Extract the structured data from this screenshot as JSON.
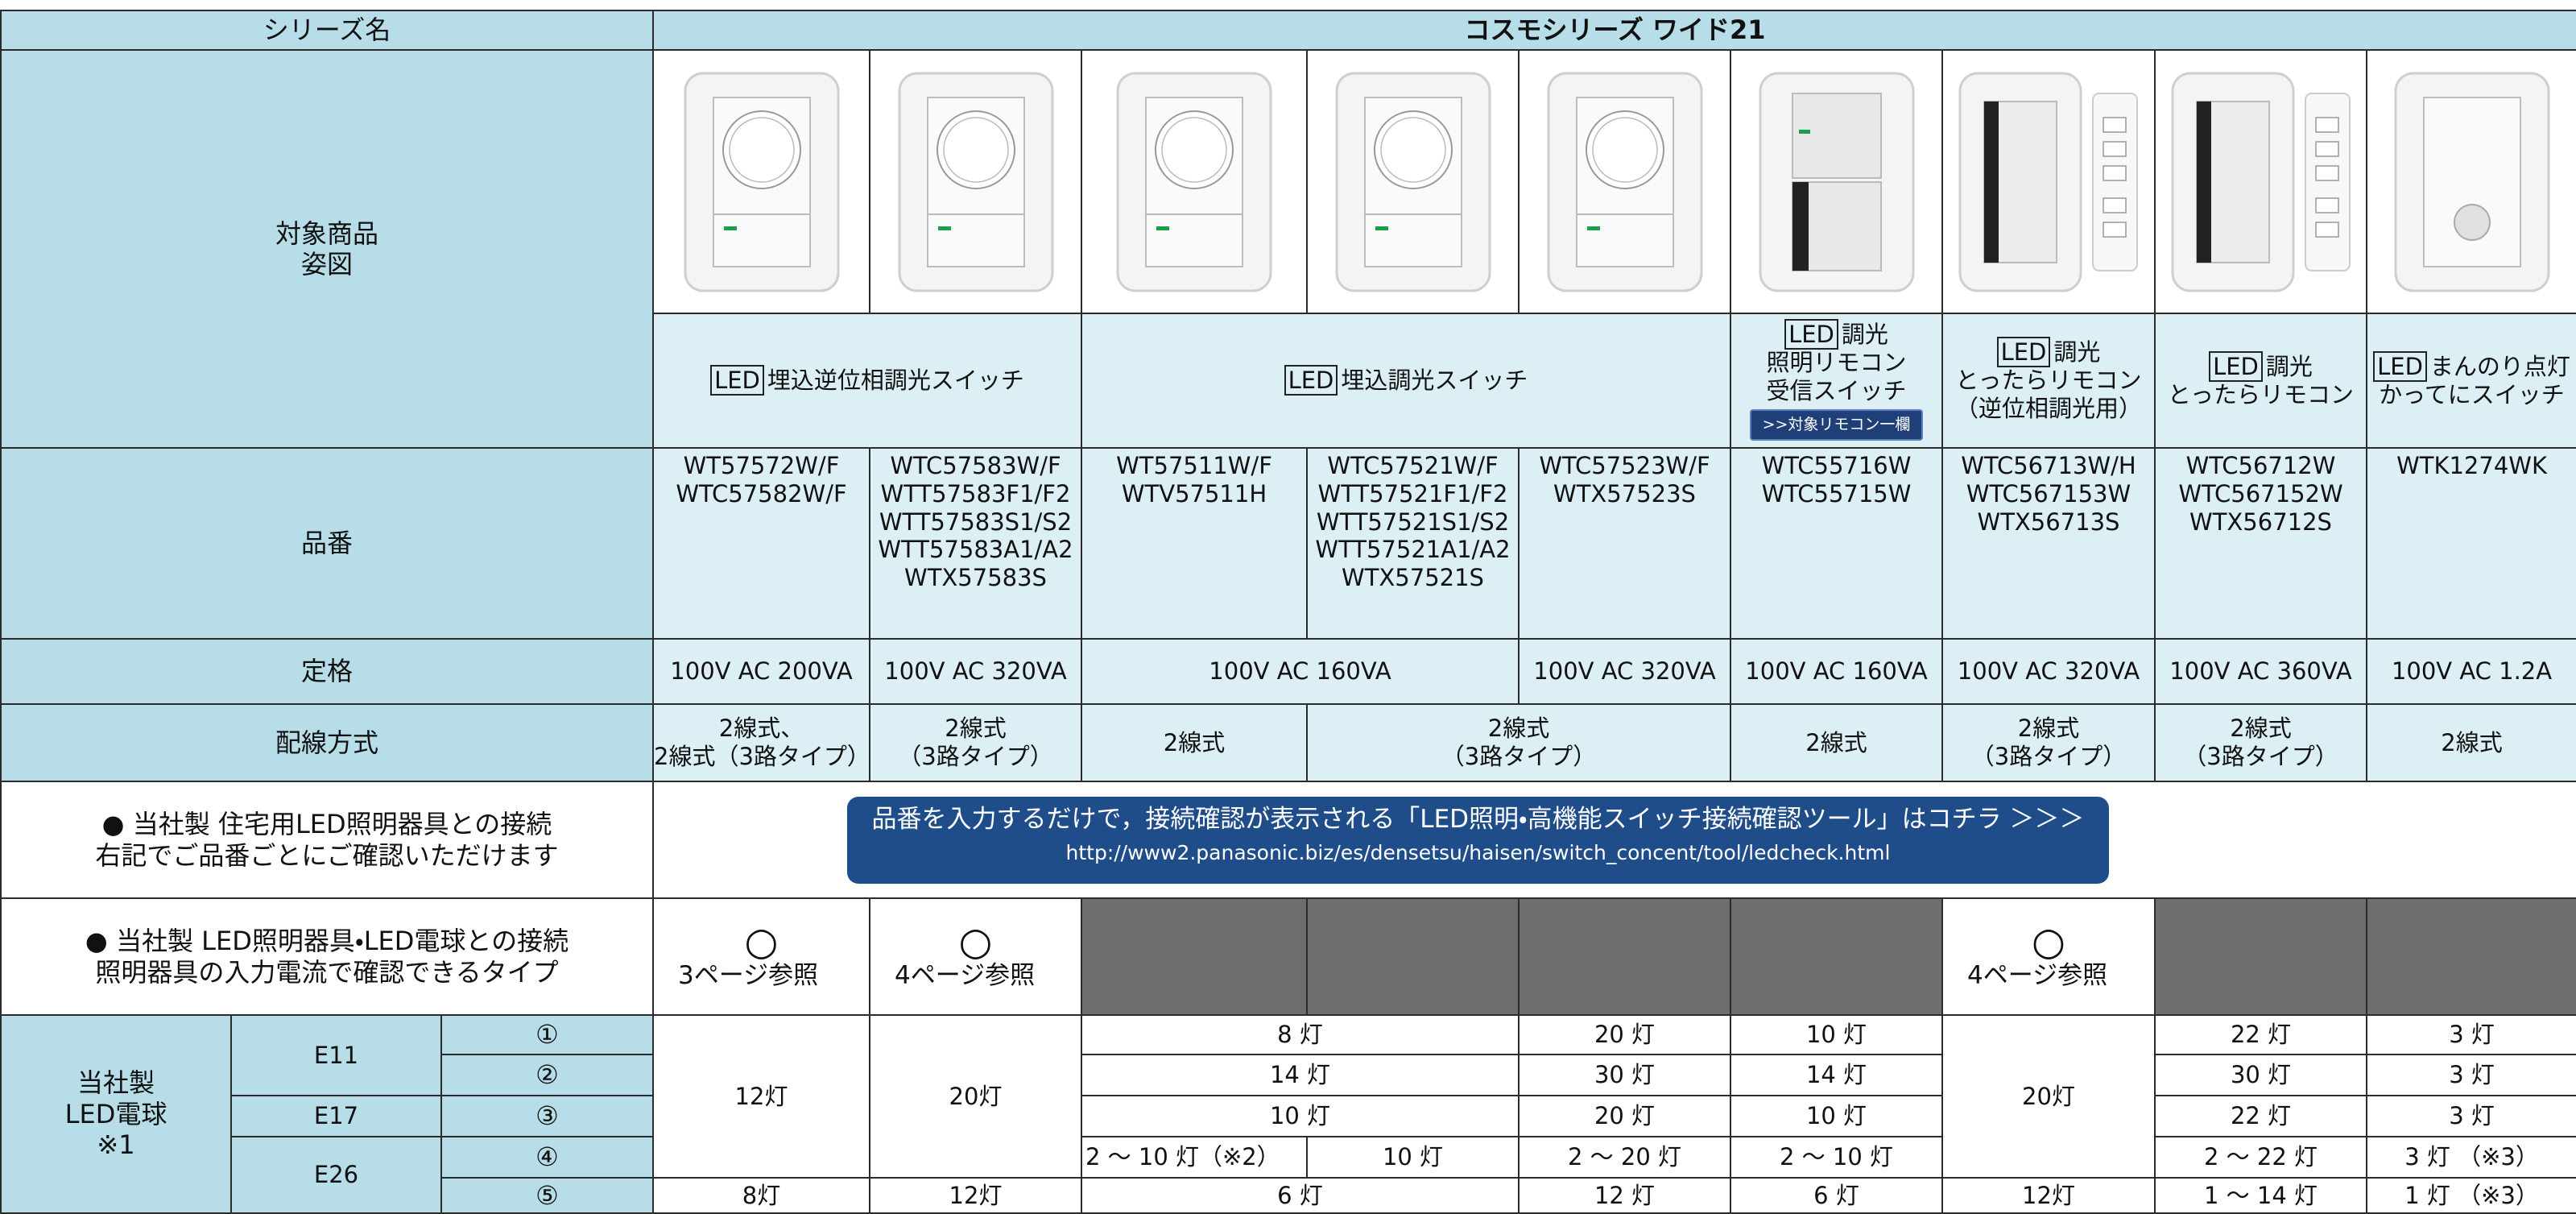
{
  "header": {
    "label": "シリーズ名",
    "series": "コスモシリーズ  ワイド21"
  },
  "image_label": [
    "対象商品",
    "姿図"
  ],
  "names": [
    {
      "badge": "LED",
      "lines": [
        "埋込逆位相調光スイッチ"
      ]
    },
    {
      "badge": "LED",
      "lines": [
        "埋込調光スイッチ"
      ]
    },
    {
      "badge": "LED",
      "lines": [
        "調光",
        "照明リモコン",
        "受信スイッチ"
      ],
      "link": ">>対象リモコン一欄"
    },
    {
      "badge": "LED",
      "lines": [
        "調光",
        "とったらリモコン",
        "（逆位相調光用）"
      ]
    },
    {
      "badge": "LED",
      "lines": [
        "調光",
        "とったらリモコン"
      ]
    },
    {
      "badge": "LED",
      "lines": [
        "まんのり点灯",
        "かってにスイッチ"
      ]
    }
  ],
  "part_numbers": {
    "label": "品番",
    "cells": [
      [
        "WT57572W/F",
        "WTC57582W/F"
      ],
      [
        "WTC57583W/F",
        "WTT57583F1/F2",
        "WTT57583S1/S2",
        "WTT57583A1/A2",
        "WTX57583S"
      ],
      [
        "WT57511W/F",
        "WTV57511H"
      ],
      [
        "WTC57521W/F",
        "WTT57521F1/F2",
        "WTT57521S1/S2",
        "WTT57521A1/A2",
        "WTX57521S"
      ],
      [
        "WTC57523W/F",
        "WTX57523S"
      ],
      [
        "WTC55716W",
        "WTC55715W"
      ],
      [
        "WTC56713W/H",
        "WTC567153W",
        "WTX56713S"
      ],
      [
        "WTC56712W",
        "WTC567152W",
        "WTX56712S"
      ],
      [
        "WTK1274WK"
      ]
    ]
  },
  "rating": {
    "label": "定格",
    "cells": [
      "100V AC 200VA",
      "100V AC 320VA",
      "100V AC 160VA",
      "100V AC 320VA",
      "100V AC 160VA",
      "100V AC 320VA",
      "100V AC 360VA",
      "100V AC 1.2A"
    ]
  },
  "wiring": {
    "label": "配線方式",
    "cells": [
      [
        "2線式、",
        "2線式（3路タイプ）"
      ],
      [
        "2線式",
        "（3路タイプ）"
      ],
      [
        "2線式"
      ],
      [
        "2線式",
        "（3路タイプ）"
      ],
      [
        "2線式"
      ],
      [
        "2線式",
        "（3路タイプ）"
      ],
      [
        "2線式",
        "（3路タイプ）"
      ],
      [
        "2線式"
      ]
    ]
  },
  "tool": {
    "label": [
      "●  当社製  住宅用LED照明器具との接続",
      "右記でご品番ごとにご確認いただけます"
    ],
    "button": [
      "品番を入力するだけで，接続確認が表示される「LED照明・高機能スイッチ接続確認ツール」はコチラ  ＞＞＞",
      "http://www2.panasonic.biz/es/densetsu/haisen/switch_concent/tool/ledcheck.html"
    ]
  },
  "connect": {
    "label": [
      "●  当社製  LED照明器具・LED電球との接続",
      "照明器具の入力電流で確認できるタイプ"
    ],
    "cells": [
      {
        "mark": "○",
        "text": "3ページ参照"
      },
      {
        "mark": "○",
        "text": "4ページ参照"
      },
      {
        "mark": "○",
        "text": "4ページ参照"
      }
    ]
  },
  "bulbs": {
    "label": [
      "当社製",
      "LED電球",
      "※1"
    ],
    "bases": [
      "E11",
      "E17",
      "E26"
    ],
    "markers": [
      "①",
      "②",
      "③",
      "④",
      "⑤"
    ],
    "col1": [
      "12灯",
      "8灯"
    ],
    "col2": [
      "20灯",
      "12灯"
    ],
    "col34": [
      "8 灯",
      "14 灯",
      "10 灯",
      "2 ～ 10 灯（※2）",
      "10 灯",
      "6 灯"
    ],
    "col5": [
      "20 灯",
      "30 灯",
      "20 灯",
      "2 ～ 20 灯",
      "12 灯"
    ],
    "col6": [
      "10 灯",
      "14 灯",
      "10 灯",
      "2 ～ 10 灯",
      "6 灯"
    ],
    "col7": [
      "20灯",
      "12灯"
    ],
    "col8": [
      "22 灯",
      "30 灯",
      "22 灯",
      "2 ～ 22 灯",
      "1 ～ 14 灯"
    ],
    "col9": [
      "3 灯",
      "3 灯",
      "3 灯",
      "3 灯  （※3）",
      "1 灯  （※3）"
    ]
  }
}
